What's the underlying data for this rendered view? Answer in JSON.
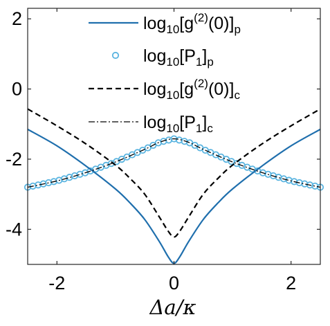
{
  "chart_data": {
    "type": "line",
    "xlabel": "Δa/κ",
    "xlim": [
      -2.5,
      2.5
    ],
    "ylim": [
      -5,
      2.3
    ],
    "x_ticks": [
      -2,
      0,
      2
    ],
    "y_ticks": [
      -4,
      -2,
      0,
      2
    ],
    "x_tick_labels": [
      "-2",
      "0",
      "2"
    ],
    "y_tick_labels": [
      "-4",
      "-2",
      "0",
      "2"
    ],
    "grid": false,
    "legend_position": "top-right",
    "series": [
      {
        "name": "log10[g(2)(0)]p",
        "style": "solid",
        "color": "#1f6fad",
        "x": [
          -2.5,
          -2.0,
          -1.5,
          -1.0,
          -0.75,
          -0.5,
          -0.25,
          -0.1,
          0.0,
          0.1,
          0.25,
          0.5,
          0.75,
          1.0,
          1.5,
          2.0,
          2.5
        ],
        "y": [
          -1.15,
          -1.62,
          -2.2,
          -2.85,
          -3.25,
          -3.72,
          -4.35,
          -4.78,
          -4.97,
          -4.78,
          -4.35,
          -3.72,
          -3.25,
          -2.85,
          -2.2,
          -1.62,
          -1.15
        ]
      },
      {
        "name": "log10[P1]p",
        "style": "markers",
        "color": "#5ab4e0",
        "x": [
          -2.5,
          -2.0,
          -1.5,
          -1.0,
          -0.5,
          -0.25,
          0.0,
          0.25,
          0.5,
          1.0,
          1.5,
          2.0,
          2.5
        ],
        "y": [
          -2.8,
          -2.62,
          -2.38,
          -2.08,
          -1.72,
          -1.52,
          -1.42,
          -1.52,
          -1.72,
          -2.08,
          -2.38,
          -2.62,
          -2.8
        ]
      },
      {
        "name": "log10[g(2)(0)]c",
        "style": "dashed",
        "color": "#000000",
        "x": [
          -2.5,
          -2.0,
          -1.5,
          -1.0,
          -0.75,
          -0.5,
          -0.25,
          -0.1,
          0.0,
          0.1,
          0.25,
          0.5,
          0.75,
          1.0,
          1.5,
          2.0,
          2.5
        ],
        "y": [
          -0.57,
          -1.05,
          -1.57,
          -2.17,
          -2.55,
          -3.0,
          -3.65,
          -4.05,
          -4.22,
          -4.05,
          -3.65,
          -3.0,
          -2.55,
          -2.17,
          -1.57,
          -1.05,
          -0.57
        ]
      },
      {
        "name": "log10[P1]c",
        "style": "dashdot",
        "color": "#000000",
        "x": [
          -2.5,
          -2.0,
          -1.5,
          -1.0,
          -0.5,
          -0.25,
          0.0,
          0.25,
          0.5,
          1.0,
          1.5,
          2.0,
          2.5
        ],
        "y": [
          -2.8,
          -2.62,
          -2.38,
          -2.08,
          -1.72,
          -1.52,
          -1.42,
          -1.52,
          -1.72,
          -2.08,
          -2.38,
          -2.62,
          -2.8
        ]
      }
    ],
    "legend": {
      "entries": [
        {
          "base": "log",
          "sub1": "10",
          "main": "[g",
          "sup": "(2)",
          "rest": "(0)]",
          "sub2": "p"
        },
        {
          "base": "log",
          "sub1": "10",
          "main": "[P",
          "sup": "",
          "subinner": "1",
          "rest": "]",
          "sub2": "p"
        },
        {
          "base": "log",
          "sub1": "10",
          "main": "[g",
          "sup": "(2)",
          "rest": "(0)]",
          "sub2": "c"
        },
        {
          "base": "log",
          "sub1": "10",
          "main": "[P",
          "sup": "",
          "subinner": "1",
          "rest": "]",
          "sub2": "c"
        }
      ]
    }
  }
}
